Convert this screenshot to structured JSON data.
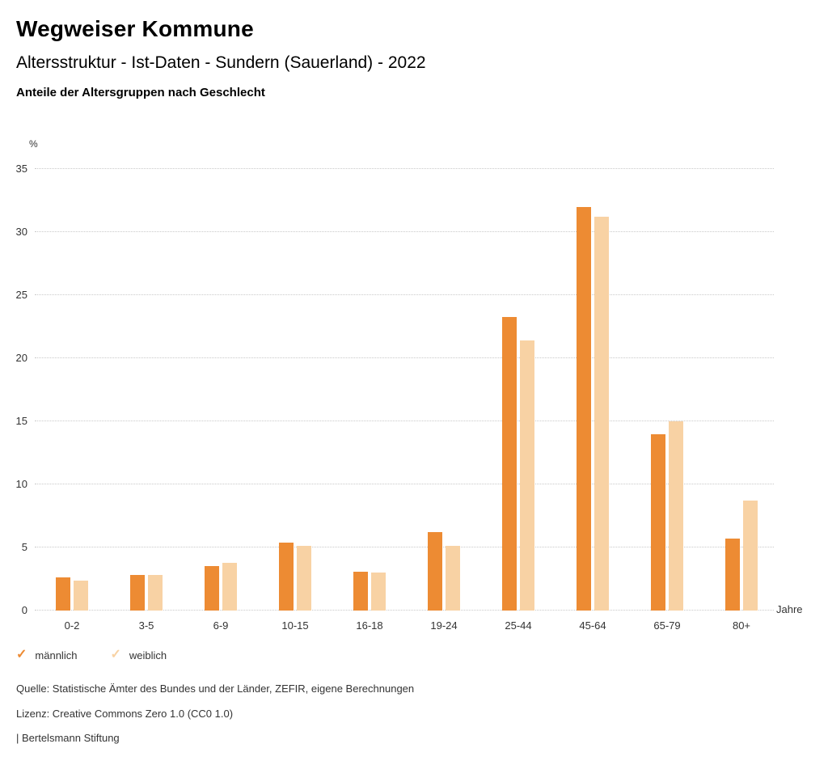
{
  "header": {
    "title": "Wegweiser Kommune",
    "subtitle": "Altersstruktur - Ist-Daten - Sundern (Sauerland) - 2022",
    "description": "Anteile der Altersgruppen nach Geschlecht"
  },
  "chart_data": {
    "type": "bar",
    "title": "Anteile der Altersgruppen nach Geschlecht",
    "categories": [
      "0-2",
      "3-5",
      "6-9",
      "10-15",
      "16-18",
      "19-24",
      "25-44",
      "45-64",
      "65-79",
      "80+"
    ],
    "series": [
      {
        "name": "männlich",
        "color": "#ED8B33",
        "values": [
          2.6,
          2.8,
          3.5,
          5.4,
          3.1,
          6.2,
          23.3,
          32.0,
          14.0,
          5.7
        ]
      },
      {
        "name": "weiblich",
        "color": "#F8D2A4",
        "values": [
          2.4,
          2.8,
          3.8,
          5.1,
          3.0,
          5.1,
          21.4,
          31.2,
          15.0,
          8.7
        ]
      }
    ],
    "xlabel": "Jahre",
    "ylabel": "%",
    "ylim": [
      0,
      35
    ],
    "yticks": [
      0,
      5,
      10,
      15,
      20,
      25,
      30,
      35
    ],
    "grid": "horizontal-dotted",
    "legend_position": "bottom-left"
  },
  "legend": {
    "items": [
      {
        "label": "männlich",
        "color": "#ED8B33",
        "icon": "check-icon"
      },
      {
        "label": "weiblich",
        "color": "#F8D2A4",
        "icon": "check-icon"
      }
    ]
  },
  "footer": {
    "source": "Quelle: Statistische Ämter des Bundes und der Länder, ZEFIR, eigene Berechnungen",
    "license": "Lizenz: Creative Commons Zero 1.0 (CC0 1.0)",
    "attribution": "| Bertelsmann Stiftung"
  }
}
